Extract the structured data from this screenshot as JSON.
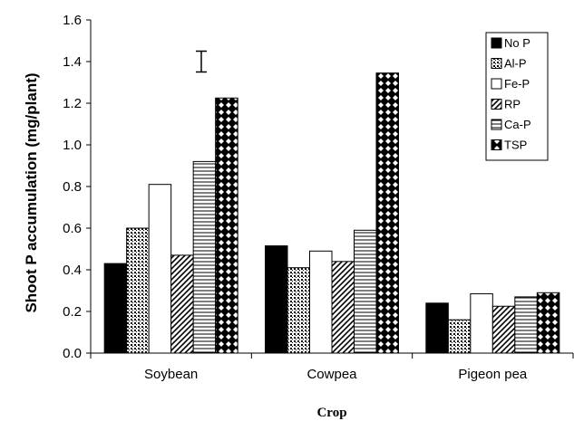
{
  "chart_data": {
    "type": "bar",
    "title": "",
    "xlabel": "Crop",
    "ylabel": "Shoot P accumulation (mg/plant)",
    "categories": [
      "Soybean",
      "Cowpea",
      "Pigeon pea"
    ],
    "ylim": [
      0,
      1.6
    ],
    "yticks": [
      "0.0",
      "0.2",
      "0.4",
      "0.6",
      "0.8",
      "1.0",
      "1.2",
      "1.4",
      "1.6"
    ],
    "series": [
      {
        "name": "No P",
        "values": [
          0.43,
          0.515,
          0.24
        ],
        "pattern": "solid"
      },
      {
        "name": "Al-P",
        "values": [
          0.6,
          0.41,
          0.16
        ],
        "pattern": "dots"
      },
      {
        "name": "Fe-P",
        "values": [
          0.81,
          0.49,
          0.285
        ],
        "pattern": "white"
      },
      {
        "name": "RP",
        "values": [
          0.47,
          0.44,
          0.225
        ],
        "pattern": "diagonal"
      },
      {
        "name": "Ca-P",
        "values": [
          0.92,
          0.59,
          0.27
        ],
        "pattern": "horizontal"
      },
      {
        "name": "TSP",
        "values": [
          1.225,
          1.345,
          0.29
        ],
        "pattern": "checker"
      }
    ],
    "error_bar": {
      "value": 1.4,
      "low": 1.35,
      "high": 1.45
    },
    "legend_position": "top-right",
    "grid": false
  }
}
